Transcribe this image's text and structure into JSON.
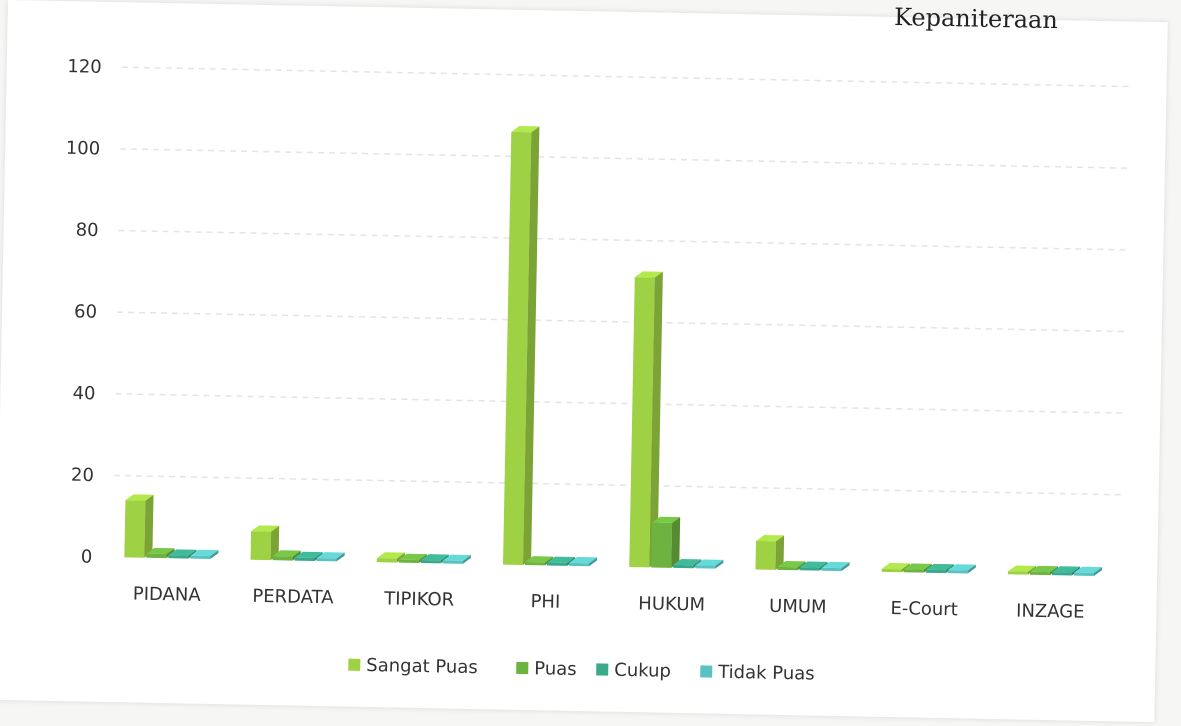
{
  "page": {
    "top_text": "Kepaniteraan"
  },
  "chart_data": {
    "type": "bar",
    "categories": [
      "PIDANA",
      "PERDATA",
      "TIPIKOR",
      "PHI",
      "HUKUM",
      "UMUM",
      "E-Court",
      "INZAGE"
    ],
    "series": [
      {
        "name": "Sangat Puas",
        "values": [
          14,
          7,
          1,
          106,
          71,
          7,
          0,
          0
        ]
      },
      {
        "name": "Puas",
        "values": [
          1,
          1,
          0,
          0,
          11,
          0,
          0,
          0
        ]
      },
      {
        "name": "Cukup",
        "values": [
          0,
          0,
          0,
          0,
          0,
          0,
          0,
          0
        ]
      },
      {
        "name": "Tidak Puas",
        "values": [
          0,
          0,
          0,
          0,
          0,
          0,
          0,
          0
        ]
      }
    ],
    "y_ticks": [
      "0",
      "20",
      "40",
      "60",
      "80",
      "100",
      "120"
    ],
    "ylim": [
      0,
      120
    ],
    "grid": true,
    "legend_position": "bottom",
    "colors": {
      "Sangat Puas": "#9fd144",
      "Puas": "#6db33f",
      "Cukup": "#3aa88a",
      "Tidak Puas": "#5bc2c2"
    }
  }
}
